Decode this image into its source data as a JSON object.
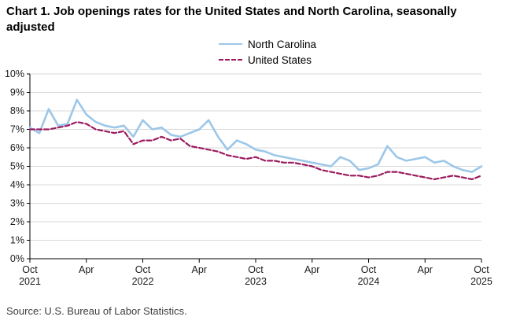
{
  "chart": {
    "title": "Chart 1. Job openings rates for the United States and North Carolina, seasonally adjusted",
    "legend": [
      "North Carolina",
      "United States"
    ],
    "source": "Source: U.S. Bureau of Labor Statistics."
  },
  "chart_data": {
    "type": "line",
    "title": "Chart 1. Job openings rates for the United States and North Carolina, seasonally adjusted",
    "xlabel": "",
    "ylabel": "",
    "ylim": [
      0,
      10
    ],
    "y_tick_step": 1,
    "y_tick_format": "percent",
    "grid": true,
    "legend_position": "top-center",
    "x": [
      "2021-10",
      "2021-11",
      "2021-12",
      "2022-01",
      "2022-02",
      "2022-03",
      "2022-04",
      "2022-05",
      "2022-06",
      "2022-07",
      "2022-08",
      "2022-09",
      "2022-10",
      "2022-11",
      "2022-12",
      "2023-01",
      "2023-02",
      "2023-03",
      "2023-04",
      "2023-05",
      "2023-06",
      "2023-07",
      "2023-08",
      "2023-09",
      "2023-10",
      "2023-11",
      "2023-12",
      "2024-01",
      "2024-02",
      "2024-03",
      "2024-04",
      "2024-05",
      "2024-06",
      "2024-07",
      "2024-08",
      "2024-09",
      "2024-10",
      "2024-11",
      "2024-12",
      "2025-01",
      "2025-02",
      "2025-03",
      "2025-04",
      "2025-05",
      "2025-06",
      "2025-07",
      "2025-08",
      "2025-09",
      "2025-10"
    ],
    "x_tick_indices": [
      0,
      6,
      12,
      18,
      24,
      30,
      36,
      42,
      48
    ],
    "x_tick_labels": [
      "Oct",
      "Apr",
      "Oct",
      "Apr",
      "Oct",
      "Apr",
      "Oct",
      "Apr",
      "Oct"
    ],
    "year_label_indices": [
      0,
      12,
      24,
      36,
      48
    ],
    "year_labels": [
      "2021",
      "2022",
      "2023",
      "2024",
      "2025"
    ],
    "series": [
      {
        "name": "North Carolina",
        "color": "#9CC7E9",
        "style": "solid",
        "values": [
          7.1,
          6.8,
          8.1,
          7.2,
          7.3,
          8.6,
          7.8,
          7.4,
          7.2,
          7.1,
          7.2,
          6.6,
          7.5,
          7.0,
          7.1,
          6.7,
          6.6,
          6.8,
          7.0,
          7.5,
          6.6,
          5.9,
          6.4,
          6.2,
          5.9,
          5.8,
          5.6,
          5.5,
          5.4,
          5.3,
          5.2,
          5.1,
          5.0,
          5.5,
          5.3,
          4.8,
          4.9,
          5.1,
          6.1,
          5.5,
          5.3,
          5.4,
          5.5,
          5.2,
          5.3,
          5.0,
          4.8,
          4.7,
          5.0
        ]
      },
      {
        "name": "United States",
        "color": "#9A1B5F",
        "style": "dashed",
        "values": [
          7.0,
          7.0,
          7.0,
          7.1,
          7.2,
          7.4,
          7.3,
          7.0,
          6.9,
          6.8,
          6.9,
          6.2,
          6.4,
          6.4,
          6.6,
          6.4,
          6.5,
          6.1,
          6.0,
          5.9,
          5.8,
          5.6,
          5.5,
          5.4,
          5.5,
          5.3,
          5.3,
          5.2,
          5.2,
          5.1,
          5.0,
          4.8,
          4.7,
          4.6,
          4.5,
          4.5,
          4.4,
          4.5,
          4.7,
          4.7,
          4.6,
          4.5,
          4.4,
          4.3,
          4.4,
          4.5,
          4.4,
          4.3,
          4.5
        ]
      }
    ],
    "source": "Source: U.S. Bureau of Labor Statistics."
  }
}
